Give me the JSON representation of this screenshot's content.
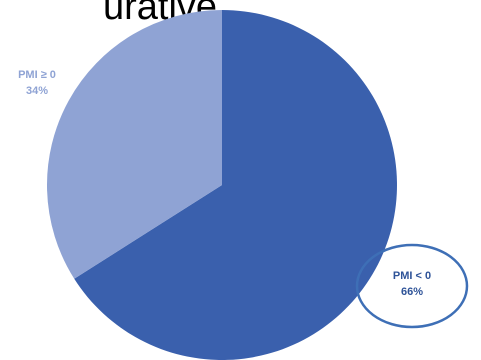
{
  "heading_fragment": "urative",
  "colors": {
    "negative": "#3a60ad",
    "positive": "#8fa3d4",
    "label_positive": "#8fa3d4",
    "label_negative": "#2e5398",
    "highlight_ring": "#3e6fb6"
  },
  "chart_data": {
    "type": "pie",
    "categories": [
      "PMI < 0",
      "PMI ≥ 0"
    ],
    "values": [
      66,
      34
    ],
    "data_labels": [
      "66%",
      "34%"
    ],
    "highlighted": "PMI < 0"
  }
}
